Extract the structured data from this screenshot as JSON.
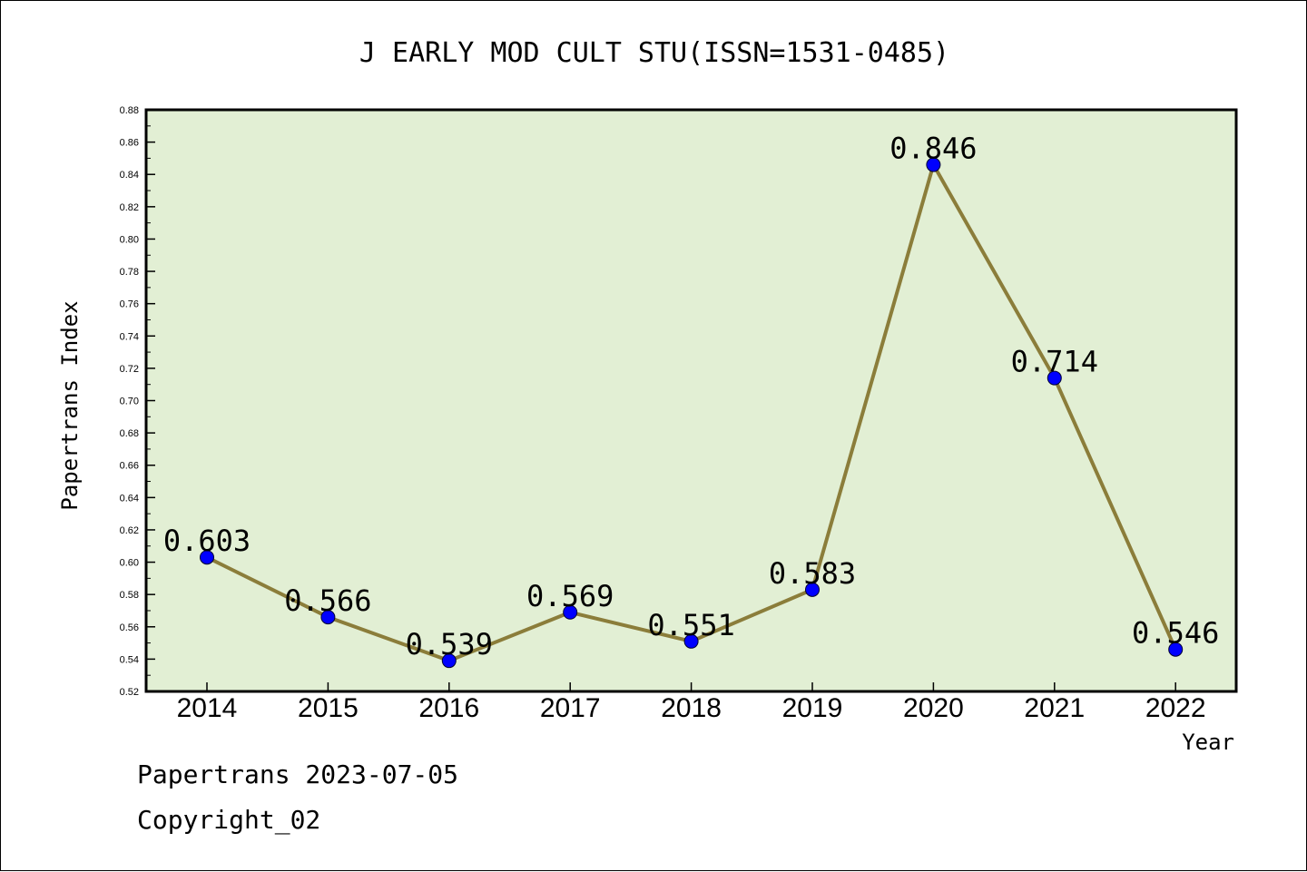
{
  "chart_data": {
    "type": "line",
    "title": "J EARLY MOD CULT STU(ISSN=1531-0485)",
    "xlabel": "Year",
    "ylabel": "Papertrans Index",
    "categories": [
      "2014",
      "2015",
      "2016",
      "2017",
      "2018",
      "2019",
      "2020",
      "2021",
      "2022"
    ],
    "series": [
      {
        "values": [
          0.603,
          0.566,
          0.539,
          0.569,
          0.551,
          0.583,
          0.846,
          0.714,
          0.546
        ],
        "labels": [
          "0.603",
          "0.566",
          "0.539",
          "0.569",
          "0.551",
          "0.583",
          "0.846",
          "0.714",
          "0.546"
        ],
        "line_color": "#8B7D3A",
        "marker_color": "#0000FF"
      }
    ],
    "ylim": [
      0.52,
      0.88
    ],
    "yticks": [
      "0.52",
      "0.54",
      "0.56",
      "0.58",
      "0.60",
      "0.62",
      "0.64",
      "0.66",
      "0.68",
      "0.70",
      "0.72",
      "0.74",
      "0.76",
      "0.78",
      "0.80",
      "0.82",
      "0.84",
      "0.86",
      "0.88"
    ],
    "plot_background": "#E2EFD4",
    "grid": false,
    "legend": "none"
  },
  "footer": {
    "line1": "Papertrans 2023-07-05",
    "line2": "Copyright_02"
  }
}
